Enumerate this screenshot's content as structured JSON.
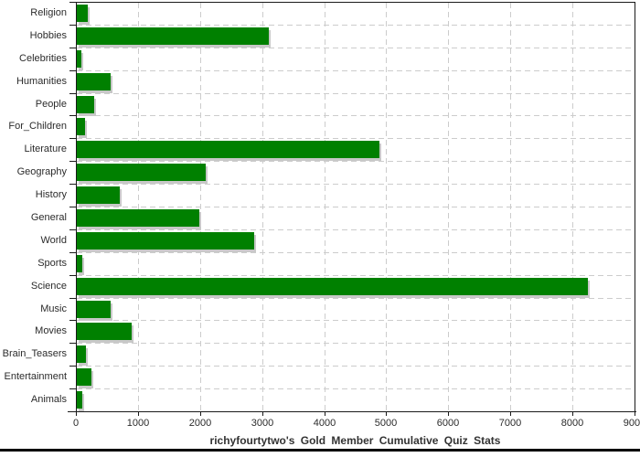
{
  "chart_data": {
    "type": "bar",
    "orientation": "horizontal",
    "title": "richyfourtytwo's Gold Member Cumulative Quiz Stats",
    "categories": [
      "Religion",
      "Hobbies",
      "Celebrities",
      "Humanities",
      "People",
      "For_Children",
      "Literature",
      "Geography",
      "History",
      "General",
      "World",
      "Sports",
      "Science",
      "Music",
      "Movies",
      "Brain_Teasers",
      "Entertainment",
      "Animals"
    ],
    "values": [
      180,
      3100,
      80,
      550,
      280,
      130,
      4880,
      2070,
      690,
      1980,
      2860,
      90,
      8230,
      550,
      880,
      140,
      240,
      90
    ],
    "xlim": [
      0,
      9000
    ],
    "x_tick_labels": [
      "0",
      "1000",
      "2000",
      "3000",
      "4000",
      "5000",
      "6000",
      "7000",
      "8000",
      "9000"
    ],
    "xlabel": "",
    "ylabel": "",
    "grid": "dashed-both-axes",
    "legend": "none",
    "colors": {
      "bar": "#008000",
      "bar_shadow": "#c8c8c8",
      "grid": "#cccccc",
      "axis": "#1a1a1a",
      "text": "#2b2b2b",
      "title": "#333333",
      "background": "#ffffff"
    }
  }
}
